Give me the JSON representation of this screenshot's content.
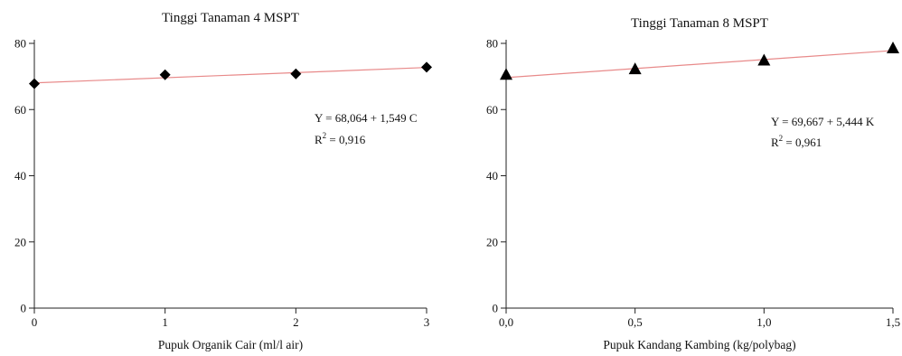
{
  "chart_data": [
    {
      "type": "scatter",
      "title": "Tinggi Tanaman 4 MSPT",
      "xlabel": "Pupuk Organik Cair (ml/l air)",
      "ylabel": "",
      "xlim": [
        0,
        3
      ],
      "ylim": [
        0,
        80
      ],
      "x_ticks": [
        0,
        1,
        2,
        3
      ],
      "x_tick_labels": [
        "0",
        "1",
        "2",
        "3"
      ],
      "y_ticks": [
        0,
        20,
        40,
        60,
        80
      ],
      "y_tick_labels": [
        "0",
        "20",
        "40",
        "60",
        "80"
      ],
      "marker": "diamond",
      "points": [
        {
          "x": 0,
          "y": 67.8
        },
        {
          "x": 1,
          "y": 70.5
        },
        {
          "x": 2,
          "y": 70.8
        },
        {
          "x": 3,
          "y": 72.8
        }
      ],
      "trendline": {
        "intercept": 68.064,
        "slope": 1.549,
        "color": "#e88a8a"
      },
      "equation": "Y = 68,064 + 1,549 C",
      "r2_prefix": "R",
      "r2_sup": "2",
      "r2_value": " = 0,916",
      "grid": false,
      "legend": "none"
    },
    {
      "type": "scatter",
      "title": "Tinggi Tanaman 8 MSPT",
      "xlabel": "Pupuk Kandang Kambing (kg/polybag)",
      "ylabel": "",
      "xlim": [
        0,
        1.5
      ],
      "ylim": [
        0,
        80
      ],
      "x_ticks": [
        0,
        0.5,
        1.0,
        1.5
      ],
      "x_tick_labels": [
        "0,0",
        "0,5",
        "1,0",
        "1,5"
      ],
      "y_ticks": [
        0,
        20,
        40,
        60,
        80
      ],
      "y_tick_labels": [
        "0",
        "20",
        "40",
        "60",
        "80"
      ],
      "marker": "triangle",
      "points": [
        {
          "x": 0,
          "y": 70.5
        },
        {
          "x": 0.5,
          "y": 72.2
        },
        {
          "x": 1.0,
          "y": 74.8
        },
        {
          "x": 1.5,
          "y": 78.5
        }
      ],
      "trendline": {
        "intercept": 69.667,
        "slope": 5.444,
        "color": "#e88a8a"
      },
      "equation": "Y = 69,667 + 5,444 K",
      "r2_prefix": "R",
      "r2_sup": "2",
      "r2_value": " = 0,961",
      "grid": false,
      "legend": "none"
    }
  ]
}
